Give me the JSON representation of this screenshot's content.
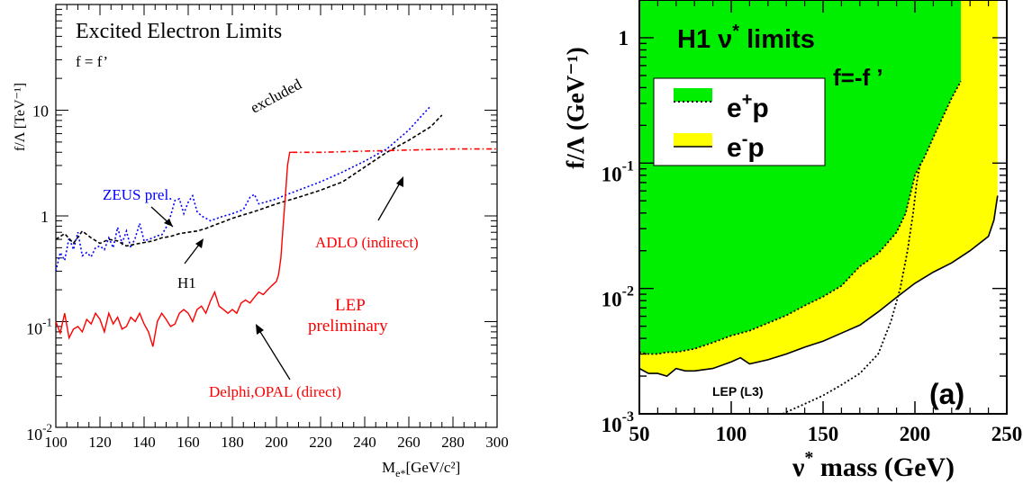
{
  "chart_data": [
    {
      "type": "line",
      "title": "Excited Electron Limits",
      "subtitle": "f = f’",
      "ylabel": "f/Λ [TeV⁻¹]",
      "xlabel": "M",
      "xlabel_sub": "e*",
      "xlabel_unit": "[GeV/c²]",
      "xlim": [
        100,
        300
      ],
      "ylim": [
        0.01,
        100
      ],
      "yscale": "log",
      "x_ticks": [
        "100",
        "120",
        "140",
        "160",
        "180",
        "200",
        "220",
        "240",
        "260",
        "280",
        "300"
      ],
      "y_ticks": [
        {
          "value": 10,
          "base": "10",
          "exp": ""
        },
        {
          "value": 1,
          "base": "1",
          "exp": ""
        },
        {
          "value": 0.1,
          "base": "10",
          "exp": "-1"
        },
        {
          "value": 0.01,
          "base": "10",
          "exp": "-2"
        }
      ],
      "series": [
        {
          "name": "ZEUS prel.",
          "color": "#0000ff",
          "style": "dotted",
          "x": [
            100,
            102,
            104,
            106,
            108,
            110,
            112,
            114,
            116,
            118,
            120,
            122,
            124,
            126,
            128,
            130,
            132,
            134,
            136,
            138,
            140,
            142,
            144,
            146,
            148,
            150,
            152,
            154,
            156,
            158,
            160,
            162,
            164,
            166,
            168,
            170,
            175,
            180,
            185,
            188,
            190,
            192,
            195,
            200,
            205,
            210,
            220,
            230,
            240,
            250,
            260,
            265,
            270
          ],
          "y": [
            0.3,
            0.45,
            0.38,
            0.62,
            0.48,
            0.7,
            0.42,
            0.45,
            0.41,
            0.5,
            0.52,
            0.48,
            0.62,
            0.5,
            0.78,
            0.55,
            0.72,
            0.5,
            0.62,
            0.85,
            0.58,
            0.6,
            0.62,
            0.65,
            0.66,
            0.78,
            1.0,
            1.4,
            1.45,
            1.05,
            1.35,
            1.55,
            1.1,
            1.0,
            0.95,
            0.9,
            0.98,
            1.05,
            1.15,
            1.5,
            1.6,
            1.3,
            1.35,
            1.45,
            1.6,
            1.75,
            2.1,
            2.6,
            3.3,
            4.3,
            6.5,
            8.5,
            11.0
          ]
        },
        {
          "name": "H1",
          "color": "#000000",
          "style": "dashed",
          "x": [
            100,
            104,
            108,
            112,
            116,
            120,
            124,
            128,
            132,
            136,
            140,
            144,
            148,
            152,
            156,
            160,
            164,
            168,
            172,
            176,
            180,
            190,
            200,
            210,
            220,
            230,
            240,
            250,
            260,
            270,
            275
          ],
          "y": [
            0.6,
            0.68,
            0.55,
            0.72,
            0.62,
            0.55,
            0.6,
            0.58,
            0.52,
            0.54,
            0.56,
            0.58,
            0.62,
            0.64,
            0.68,
            0.7,
            0.72,
            0.76,
            0.82,
            0.88,
            0.95,
            1.1,
            1.3,
            1.5,
            1.75,
            2.1,
            2.9,
            4.0,
            5.2,
            7.0,
            9.0
          ]
        },
        {
          "name": "LEP preliminary",
          "color": "#ff0000",
          "style": "solid",
          "x": [
            100,
            102,
            104,
            106,
            108,
            110,
            112,
            114,
            116,
            118,
            120,
            122,
            124,
            126,
            128,
            130,
            132,
            134,
            136,
            138,
            140,
            142,
            144,
            146,
            148,
            150,
            152,
            154,
            156,
            158,
            160,
            162,
            164,
            166,
            168,
            170,
            172,
            174,
            176,
            178,
            180,
            182,
            184,
            186,
            188,
            190,
            192,
            194,
            196,
            198,
            200,
            201,
            202,
            203,
            204,
            205,
            206,
            207
          ],
          "y": [
            0.1,
            0.078,
            0.12,
            0.07,
            0.085,
            0.09,
            0.08,
            0.105,
            0.095,
            0.12,
            0.105,
            0.08,
            0.12,
            0.095,
            0.11,
            0.085,
            0.09,
            0.11,
            0.1,
            0.12,
            0.095,
            0.08,
            0.058,
            0.1,
            0.12,
            0.105,
            0.09,
            0.095,
            0.12,
            0.13,
            0.12,
            0.1,
            0.13,
            0.14,
            0.12,
            0.155,
            0.19,
            0.14,
            0.13,
            0.12,
            0.13,
            0.12,
            0.15,
            0.16,
            0.15,
            0.17,
            0.19,
            0.18,
            0.2,
            0.22,
            0.24,
            0.28,
            0.4,
            0.8,
            1.5,
            3.0,
            4.0,
            4.0
          ]
        },
        {
          "name": "ADLO (indirect)",
          "color": "#ff0000",
          "style": "dash-dot",
          "x": [
            207,
            220,
            240,
            260,
            280,
            300
          ],
          "y": [
            4.0,
            4.0,
            4.1,
            4.2,
            4.3,
            4.3
          ]
        }
      ],
      "annotations": [
        {
          "text": "excluded",
          "color": "#000000"
        },
        {
          "text": "ZEUS prel.",
          "color": "#0000ff"
        },
        {
          "text": "H1",
          "color": "#000000"
        },
        {
          "text": "ADLO (indirect)",
          "color": "#ff0000"
        },
        {
          "text": "LEP",
          "color": "#ff0000"
        },
        {
          "text": "preliminary",
          "color": "#ff0000"
        },
        {
          "text": "Delphi,OPAL (direct)",
          "color": "#ff0000"
        }
      ],
      "grid": false
    },
    {
      "type": "area",
      "title_main": "H1 ν",
      "title_sup": "*",
      "title_tail": " limits",
      "condition": "f=-f ’",
      "ylabel": "f/Λ (GeV⁻¹)",
      "xlabel_main": "ν",
      "xlabel_sup": "*",
      "xlabel_tail": " mass (GeV)",
      "panel_label": "(a)",
      "xlim": [
        50,
        250
      ],
      "ylim": [
        0.001,
        2
      ],
      "yscale": "log",
      "x_ticks": [
        "50",
        "100",
        "150",
        "200",
        "250"
      ],
      "y_ticks": [
        {
          "value": 1,
          "base": "1",
          "exp": ""
        },
        {
          "value": 0.1,
          "base": "10",
          "exp": "-1"
        },
        {
          "value": 0.01,
          "base": "10",
          "exp": "-2"
        },
        {
          "value": 0.001,
          "base": "10",
          "exp": "-3"
        }
      ],
      "legend": [
        {
          "base": "e",
          "sup": "+",
          "tail": "p",
          "fill": "#00ee00",
          "line": "dotted"
        },
        {
          "base": "e",
          "sup": "-",
          "tail": "p",
          "fill": "#ffff00",
          "line": "solid"
        }
      ],
      "legend_position": "upper-left",
      "series": [
        {
          "name": "e⁺p",
          "color": "#000000",
          "fill": "#00ee00",
          "style": "dotted",
          "x": [
            50,
            55,
            60,
            65,
            70,
            80,
            90,
            100,
            110,
            120,
            130,
            140,
            150,
            160,
            170,
            180,
            190,
            195,
            200,
            205,
            210,
            215,
            220,
            225
          ],
          "y": [
            0.0031,
            0.003,
            0.003,
            0.0031,
            0.0031,
            0.0033,
            0.0037,
            0.0042,
            0.0046,
            0.0053,
            0.0061,
            0.0073,
            0.0086,
            0.0105,
            0.015,
            0.019,
            0.028,
            0.04,
            0.08,
            0.11,
            0.16,
            0.23,
            0.33,
            0.45
          ]
        },
        {
          "name": "e⁻p",
          "color": "#000000",
          "fill": "#ffff00",
          "style": "solid",
          "x": [
            50,
            55,
            60,
            65,
            70,
            75,
            80,
            90,
            100,
            105,
            110,
            120,
            130,
            140,
            150,
            160,
            170,
            180,
            190,
            200,
            210,
            220,
            230,
            240,
            243,
            245
          ],
          "y": [
            0.0023,
            0.0021,
            0.0021,
            0.002,
            0.0023,
            0.0022,
            0.0022,
            0.0023,
            0.0026,
            0.0028,
            0.0025,
            0.0027,
            0.003,
            0.0034,
            0.0038,
            0.0044,
            0.0051,
            0.0065,
            0.0085,
            0.011,
            0.0135,
            0.016,
            0.02,
            0.026,
            0.035,
            0.055
          ]
        },
        {
          "name": "LEP (L3)",
          "color": "#000000",
          "style": "dotted",
          "x": [
            128,
            140,
            150,
            160,
            170,
            180,
            187,
            192,
            196,
            199,
            201,
            203
          ],
          "y": [
            0.001,
            0.0012,
            0.0014,
            0.0017,
            0.0021,
            0.003,
            0.0055,
            0.01,
            0.02,
            0.04,
            0.07,
            0.1
          ]
        }
      ],
      "annotations": [
        {
          "text": "LEP (L3)",
          "color": "#000000"
        }
      ],
      "grid": false
    }
  ]
}
